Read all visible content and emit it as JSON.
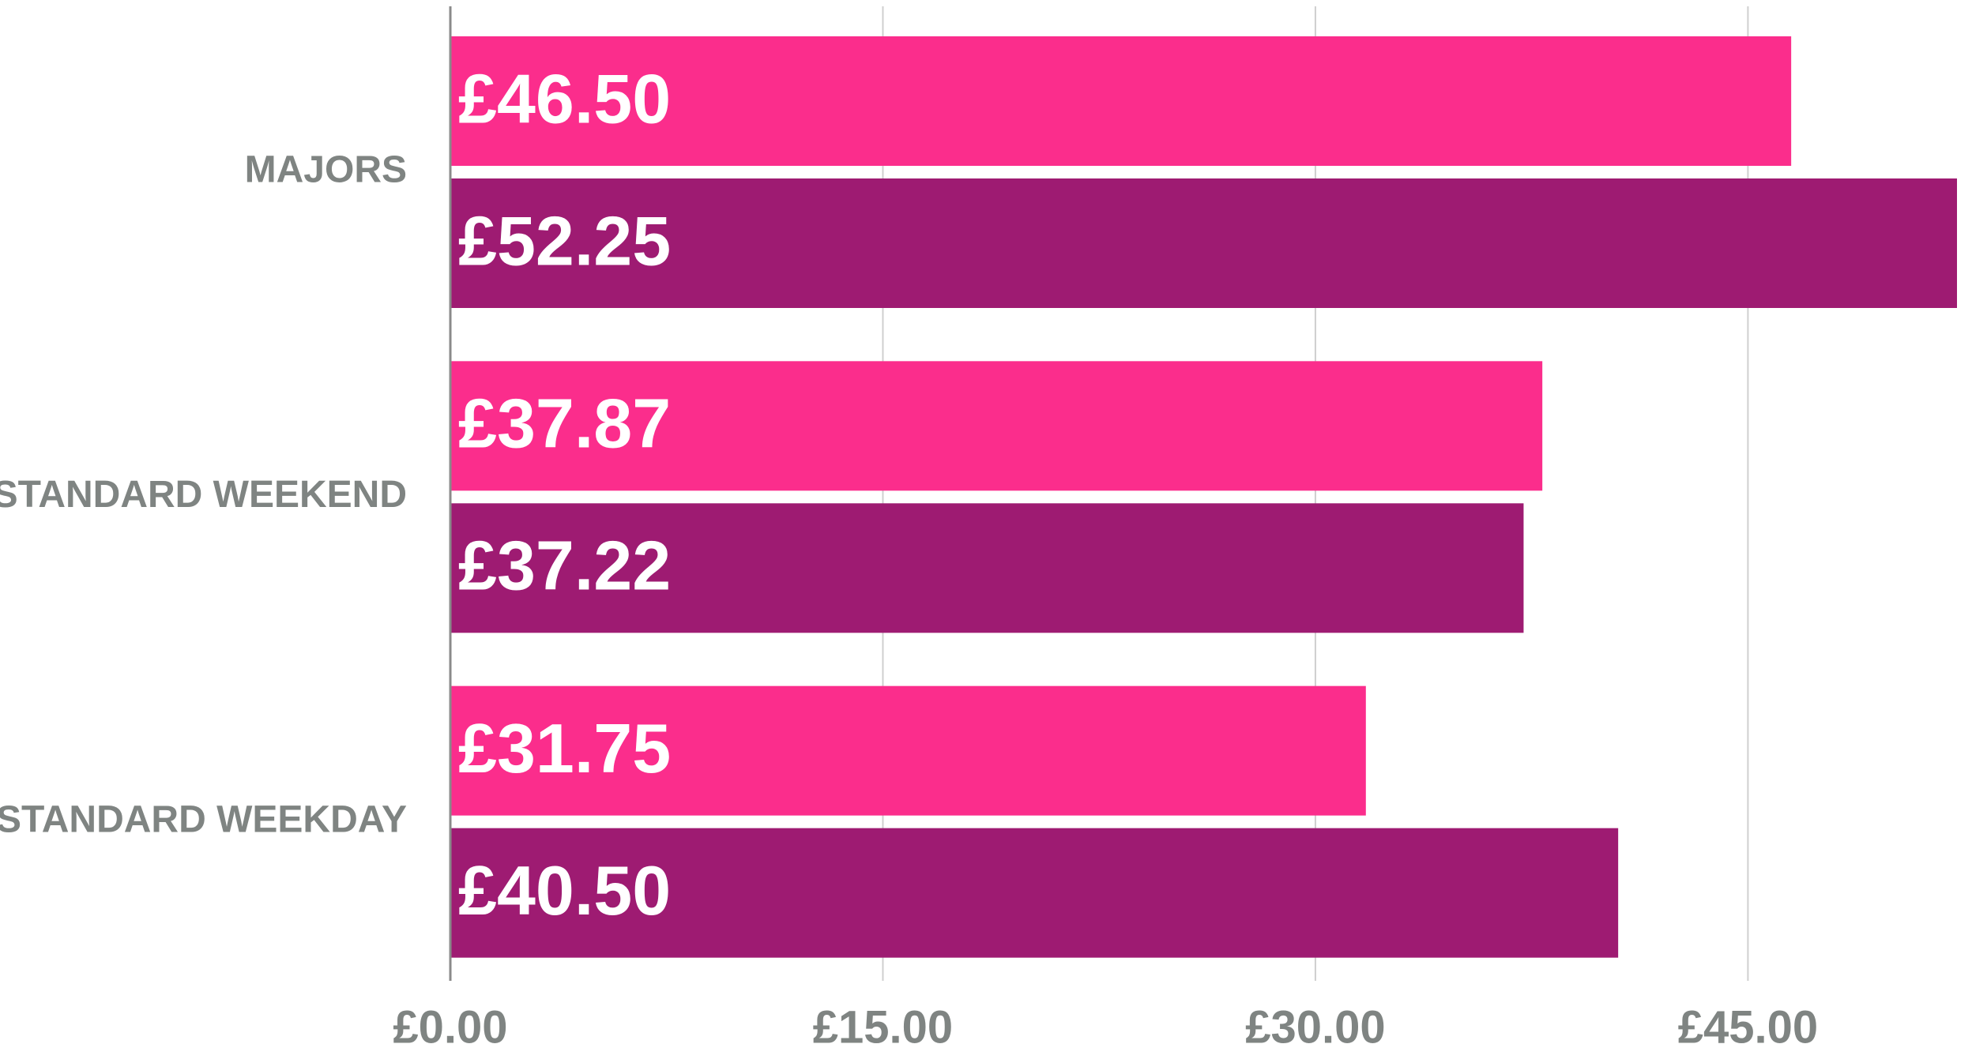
{
  "chart_data": {
    "type": "hbar",
    "categories": [
      "MAJORS",
      "STANDARD WEEKEND",
      "STANDARD WEEKDAY"
    ],
    "series": [
      {
        "color": "#fb2d8c",
        "values": [
          46.5,
          37.87,
          31.75
        ],
        "value_labels": [
          "£46.50",
          "£37.87",
          "£31.75"
        ]
      },
      {
        "color": "#9e1b72",
        "values": [
          52.25,
          37.22,
          40.5
        ],
        "value_labels": [
          "£52.25",
          "£37.22",
          "£40.50"
        ]
      }
    ],
    "xlim": [
      0,
      52.25
    ],
    "xticks": [
      {
        "value": 0,
        "label": "£0.00"
      },
      {
        "value": 15,
        "label": "£15.00"
      },
      {
        "value": 30,
        "label": "£30.00"
      },
      {
        "value": 45,
        "label": "£45.00"
      }
    ],
    "grid": true
  }
}
